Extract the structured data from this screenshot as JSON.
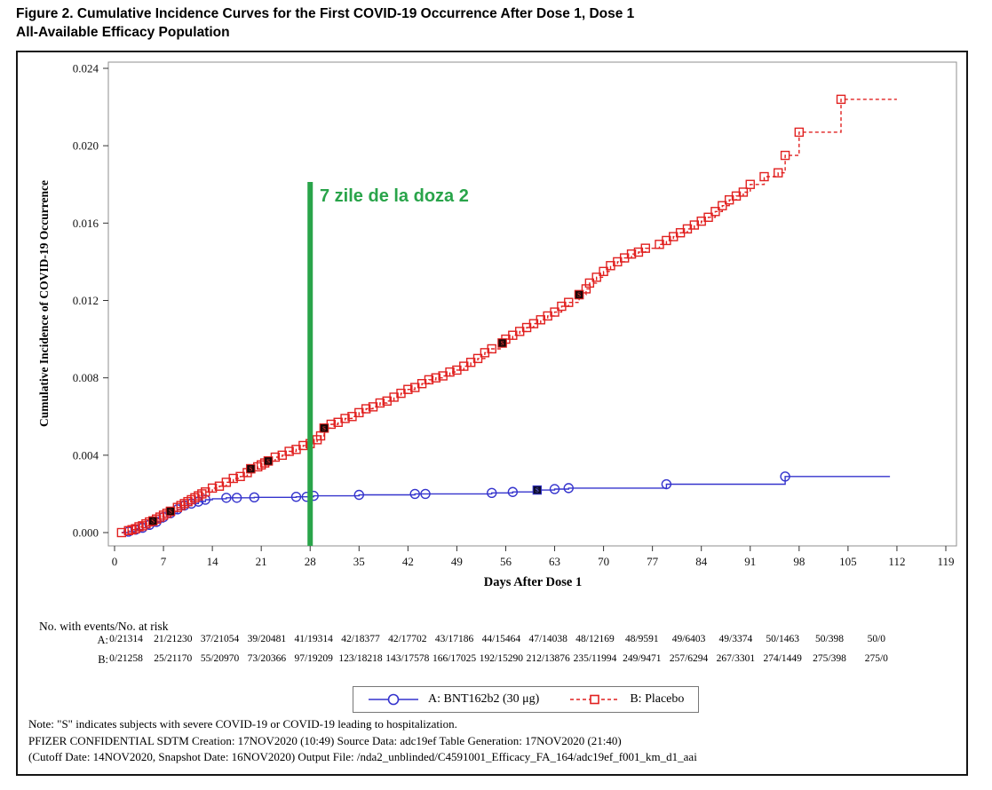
{
  "figure": {
    "title_line1": "Figure 2. Cumulative Incidence Curves for the First COVID-19 Occurrence After Dose 1, Dose 1",
    "title_line2": "All-Available Efficacy Population"
  },
  "chart_data": {
    "type": "line",
    "subtype": "kaplan-meier-step",
    "title": "",
    "xlabel": "Days After Dose 1",
    "ylabel": "Cumulative Incidence of COVID-19 Occurrence",
    "xlim": [
      0,
      119
    ],
    "ylim": [
      0,
      0.024
    ],
    "x_ticks": [
      0,
      7,
      14,
      21,
      28,
      35,
      42,
      49,
      56,
      63,
      70,
      77,
      84,
      91,
      98,
      105,
      112,
      119
    ],
    "y_ticks": [
      0.0,
      0.004,
      0.008,
      0.012,
      0.016,
      0.02,
      0.024
    ],
    "grid": false,
    "legend_position": "bottom-center",
    "annotation": {
      "text": "7 zile de la doza 2",
      "x_day": 28,
      "color": "#29a44a",
      "line_style": "vertical-reference-line"
    },
    "series": [
      {
        "name": "A: BNT162b2 (30 μg)",
        "color": "#3534cd",
        "style": "solid",
        "marker": "circle",
        "points": [
          [
            1,
            0
          ],
          [
            2,
            5e-05
          ],
          [
            3,
            0.00015
          ],
          [
            4,
            0.00025
          ],
          [
            5,
            0.0004
          ],
          [
            6,
            0.00055
          ],
          [
            7,
            0.0008
          ],
          [
            8,
            0.001
          ],
          [
            9,
            0.0012
          ],
          [
            10,
            0.0014
          ],
          [
            11,
            0.0015
          ],
          [
            12,
            0.0016
          ],
          [
            13,
            0.0017
          ],
          [
            14,
            0.00175
          ],
          [
            16,
            0.0018
          ],
          [
            20,
            0.00182
          ],
          [
            26,
            0.00185
          ],
          [
            28.5,
            0.0019
          ],
          [
            35,
            0.00195
          ],
          [
            43,
            0.002
          ],
          [
            54,
            0.00205
          ],
          [
            57,
            0.0021
          ],
          [
            60.5,
            0.0022
          ],
          [
            63,
            0.00225
          ],
          [
            65,
            0.0023
          ],
          [
            79,
            0.0025
          ],
          [
            96,
            0.0029
          ],
          [
            111,
            0.0029
          ]
        ],
        "marker_points": [
          [
            2,
            5e-05
          ],
          [
            3,
            0.00015
          ],
          [
            4,
            0.00025
          ],
          [
            5,
            0.0004
          ],
          [
            6,
            0.00055
          ],
          [
            7,
            0.0008
          ],
          [
            8,
            0.001
          ],
          [
            9,
            0.0012
          ],
          [
            10,
            0.0014
          ],
          [
            11,
            0.0015
          ],
          [
            12,
            0.0016
          ],
          [
            13,
            0.0017
          ],
          [
            16,
            0.0018
          ],
          [
            17.5,
            0.0018
          ],
          [
            20,
            0.00182
          ],
          [
            26,
            0.00185
          ],
          [
            27.5,
            0.00185
          ],
          [
            28.5,
            0.0019
          ],
          [
            35,
            0.00195
          ],
          [
            43,
            0.002
          ],
          [
            44.5,
            0.002
          ],
          [
            54,
            0.00205
          ],
          [
            57,
            0.0021
          ],
          [
            63,
            0.00225
          ],
          [
            65,
            0.0023
          ],
          [
            79,
            0.0025
          ],
          [
            96,
            0.0029
          ]
        ],
        "severe_points": [
          [
            60.5,
            0.0022
          ]
        ]
      },
      {
        "name": "B: Placebo",
        "color": "#e12120",
        "style": "dashed",
        "marker": "square",
        "points": [
          [
            1,
            0
          ],
          [
            2,
            0.0001
          ],
          [
            2.5,
            0.00015
          ],
          [
            3,
            0.0002
          ],
          [
            3.5,
            0.0003
          ],
          [
            4,
            0.00035
          ],
          [
            4.5,
            0.00045
          ],
          [
            5,
            0.00055
          ],
          [
            5.5,
            0.0006
          ],
          [
            6,
            0.0007
          ],
          [
            6.5,
            0.0008
          ],
          [
            7,
            0.0009
          ],
          [
            7.5,
            0.001
          ],
          [
            8,
            0.0011
          ],
          [
            9,
            0.0013
          ],
          [
            9.5,
            0.0014
          ],
          [
            10,
            0.0015
          ],
          [
            10.5,
            0.0016
          ],
          [
            11,
            0.0017
          ],
          [
            11.5,
            0.0018
          ],
          [
            12,
            0.0019
          ],
          [
            12.5,
            0.002
          ],
          [
            13,
            0.0021
          ],
          [
            14,
            0.0023
          ],
          [
            15,
            0.0024
          ],
          [
            16,
            0.0026
          ],
          [
            17,
            0.0028
          ],
          [
            18,
            0.0029
          ],
          [
            19,
            0.0031
          ],
          [
            19.5,
            0.0033
          ],
          [
            20.5,
            0.0034
          ],
          [
            21,
            0.0035
          ],
          [
            21.5,
            0.0036
          ],
          [
            22,
            0.0037
          ],
          [
            23,
            0.0039
          ],
          [
            24,
            0.004
          ],
          [
            25,
            0.0042
          ],
          [
            26,
            0.0043
          ],
          [
            27,
            0.0045
          ],
          [
            28,
            0.0046
          ],
          [
            29,
            0.0048
          ],
          [
            29.5,
            0.005
          ],
          [
            30,
            0.0054
          ],
          [
            31,
            0.0056
          ],
          [
            32,
            0.0057
          ],
          [
            33,
            0.0059
          ],
          [
            34,
            0.006
          ],
          [
            35,
            0.0062
          ],
          [
            36,
            0.0064
          ],
          [
            37,
            0.0065
          ],
          [
            38,
            0.0067
          ],
          [
            39,
            0.0068
          ],
          [
            40,
            0.007
          ],
          [
            41,
            0.0072
          ],
          [
            42,
            0.0074
          ],
          [
            43,
            0.0075
          ],
          [
            44,
            0.0077
          ],
          [
            45,
            0.0079
          ],
          [
            46,
            0.008
          ],
          [
            47,
            0.0081
          ],
          [
            48,
            0.0083
          ],
          [
            49,
            0.0084
          ],
          [
            50,
            0.0086
          ],
          [
            51,
            0.0088
          ],
          [
            52,
            0.009
          ],
          [
            53,
            0.0093
          ],
          [
            54,
            0.0095
          ],
          [
            55.5,
            0.0098
          ],
          [
            56,
            0.01
          ],
          [
            57,
            0.0102
          ],
          [
            58,
            0.0104
          ],
          [
            59,
            0.0106
          ],
          [
            60,
            0.0108
          ],
          [
            61,
            0.011
          ],
          [
            62,
            0.0112
          ],
          [
            63,
            0.0114
          ],
          [
            64,
            0.0117
          ],
          [
            65,
            0.0119
          ],
          [
            66.5,
            0.0123
          ],
          [
            67.5,
            0.0126
          ],
          [
            68,
            0.0129
          ],
          [
            69,
            0.0132
          ],
          [
            70,
            0.0135
          ],
          [
            71,
            0.0138
          ],
          [
            72,
            0.014
          ],
          [
            73,
            0.0142
          ],
          [
            74,
            0.0144
          ],
          [
            75,
            0.0145
          ],
          [
            76,
            0.0147
          ],
          [
            78,
            0.0149
          ],
          [
            79,
            0.0151
          ],
          [
            80,
            0.0153
          ],
          [
            81,
            0.0155
          ],
          [
            82,
            0.0157
          ],
          [
            83,
            0.0159
          ],
          [
            84,
            0.0161
          ],
          [
            85,
            0.0163
          ],
          [
            86,
            0.0166
          ],
          [
            87,
            0.0169
          ],
          [
            88,
            0.0172
          ],
          [
            89,
            0.0174
          ],
          [
            90,
            0.0176
          ],
          [
            91,
            0.018
          ],
          [
            93,
            0.0184
          ],
          [
            95,
            0.0186
          ],
          [
            96,
            0.0195
          ],
          [
            98,
            0.0207
          ],
          [
            104,
            0.0224
          ],
          [
            112,
            0.0224
          ]
        ],
        "severe_points": [
          [
            5.5,
            0.0006
          ],
          [
            8,
            0.0011
          ],
          [
            19.5,
            0.0033
          ],
          [
            22,
            0.0037
          ],
          [
            30,
            0.0054
          ],
          [
            55.5,
            0.0098
          ],
          [
            66.5,
            0.0123
          ]
        ]
      }
    ]
  },
  "risk_table": {
    "caption": "No. with events/No. at risk",
    "rows": [
      {
        "label": "A:",
        "values": [
          "0/21314",
          "21/21230",
          "37/21054",
          "39/20481",
          "41/19314",
          "42/18377",
          "42/17702",
          "43/17186",
          "44/15464",
          "47/14038",
          "48/12169",
          "48/9591",
          "49/6403",
          "49/3374",
          "50/1463",
          "50/398",
          "50/0"
        ]
      },
      {
        "label": "B:",
        "values": [
          "0/21258",
          "25/21170",
          "55/20970",
          "73/20366",
          "97/19209",
          "123/18218",
          "143/17578",
          "166/17025",
          "192/15290",
          "212/13876",
          "235/11994",
          "249/9471",
          "257/6294",
          "267/3301",
          "274/1449",
          "275/398",
          "275/0"
        ]
      }
    ]
  },
  "legend": {
    "items": [
      {
        "label": "A: BNT162b2 (30 μg)",
        "marker": "circle",
        "color": "#3534cd"
      },
      {
        "label": "B: Placebo",
        "marker": "square",
        "color": "#e12120"
      }
    ]
  },
  "notes": {
    "line1": "Note: \"S\" indicates subjects with severe COVID-19 or COVID-19 leading to hospitalization.",
    "line2": "PFIZER CONFIDENTIAL  SDTM Creation: 17NOV2020 (10:49)  Source Data: adc19ef  Table Generation: 17NOV2020 (21:40)",
    "line3": "(Cutoff Date: 14NOV2020, Snapshot Date: 16NOV2020) Output File:  /nda2_unblinded/C4591001_Efficacy_FA_164/adc19ef_f001_km_d1_aai"
  }
}
